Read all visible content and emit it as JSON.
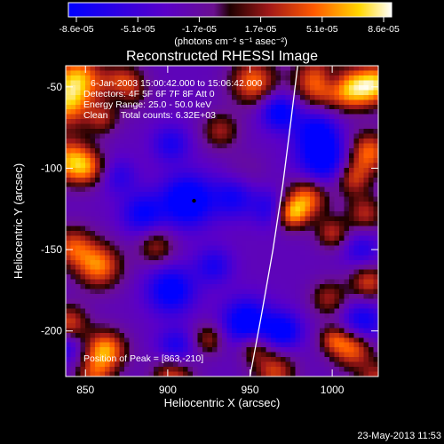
{
  "chart_data": {
    "type": "heatmap",
    "title": "Reconstructed RHESSI Image",
    "xlabel": "Heliocentric X (arcsec)",
    "ylabel": "Heliocentric Y (arcsec)",
    "xlim": [
      838,
      1028
    ],
    "ylim": [
      -228,
      -37
    ],
    "x_ticks": [
      850,
      900,
      950,
      1000
    ],
    "y_ticks": [
      -50,
      -100,
      -150,
      -200
    ],
    "colorbar": {
      "ticks": [
        "-8.6e-05",
        "-5.1e-05",
        "-1.7e-05",
        "1.7e-05",
        "5.1e-05",
        "8.6e-05"
      ],
      "units_label": "(photons cm⁻² s⁻¹ asec⁻²)",
      "range": [
        -8.6e-05,
        8.6e-05
      ]
    },
    "annotations": {
      "time_range": "6-Jan-2003 15:00:42.000 to 15:06:42.000",
      "detectors": "Detectors: 4F 5F 6F 7F 8F  Att 0",
      "energy_range": "Energy Range: 25.0 - 50.0 keV",
      "clean_counts": "Clean     Total counts: 6.32E+03",
      "peak_position": "Position of Peak = [863,-210]"
    },
    "limb_curve": [
      [
        950,
        -228
      ],
      [
        957,
        -190
      ],
      [
        964,
        -150
      ],
      [
        970,
        -110
      ],
      [
        975,
        -70
      ],
      [
        979,
        -37
      ]
    ],
    "peak_marker": [
      916,
      -120
    ],
    "blobs": [
      [
        845,
        -45,
        1.0,
        11
      ],
      [
        873,
        -50,
        0.9,
        9
      ],
      [
        838,
        -62,
        0.8,
        10
      ],
      [
        840,
        -95,
        0.9,
        10
      ],
      [
        852,
        -100,
        0.6,
        8
      ],
      [
        860,
        -70,
        0.5,
        7
      ],
      [
        952,
        -47,
        0.85,
        10
      ],
      [
        992,
        -47,
        0.9,
        11
      ],
      [
        1012,
        -52,
        0.85,
        9
      ],
      [
        1027,
        -48,
        1.0,
        9
      ],
      [
        1022,
        -90,
        0.85,
        9
      ],
      [
        1012,
        -106,
        0.7,
        8
      ],
      [
        985,
        -118,
        0.85,
        9
      ],
      [
        975,
        -128,
        0.9,
        7
      ],
      [
        1020,
        -128,
        0.6,
        8
      ],
      [
        1000,
        -140,
        0.6,
        7
      ],
      [
        932,
        -77,
        0.55,
        8
      ],
      [
        947,
        -102,
        0.5,
        7
      ],
      [
        893,
        -148,
        0.55,
        8
      ],
      [
        858,
        -160,
        0.9,
        10
      ],
      [
        842,
        -148,
        0.7,
        9
      ],
      [
        862,
        -212,
        1.0,
        9
      ],
      [
        840,
        -195,
        0.7,
        8
      ],
      [
        855,
        -228,
        0.6,
        8
      ],
      [
        903,
        -228,
        0.7,
        9
      ],
      [
        925,
        -205,
        0.55,
        7
      ],
      [
        965,
        -225,
        0.7,
        9
      ],
      [
        952,
        -210,
        0.55,
        7
      ],
      [
        998,
        -180,
        0.55,
        8
      ],
      [
        1012,
        -210,
        0.9,
        9
      ],
      [
        1027,
        -230,
        0.6,
        8
      ],
      [
        1022,
        -170,
        0.7,
        8
      ],
      [
        1000,
        -205,
        0.5,
        6
      ],
      [
        912,
        -120,
        -0.95,
        11
      ],
      [
        947,
        -102,
        -0.35,
        6
      ],
      [
        968,
        -65,
        -0.8,
        8
      ],
      [
        995,
        -95,
        -0.85,
        11
      ],
      [
        990,
        -77,
        -0.65,
        9
      ],
      [
        963,
        -125,
        -0.5,
        8
      ],
      [
        885,
        -128,
        -0.65,
        9
      ],
      [
        940,
        -118,
        -0.55,
        9
      ],
      [
        902,
        -175,
        -0.8,
        10
      ],
      [
        948,
        -195,
        -0.9,
        10
      ],
      [
        970,
        -200,
        -0.75,
        8
      ],
      [
        1018,
        -195,
        -0.7,
        9
      ],
      [
        905,
        -210,
        -0.55,
        8
      ],
      [
        838,
        -210,
        -0.45,
        7
      ],
      [
        870,
        -105,
        -0.4,
        8
      ],
      [
        1018,
        -150,
        -0.45,
        8
      ],
      [
        928,
        -160,
        -0.5,
        8
      ],
      [
        870,
        -55,
        -0.35,
        6
      ],
      [
        1000,
        -45,
        -0.4,
        6
      ],
      [
        902,
        -85,
        -0.5,
        8
      ]
    ]
  },
  "footer": {
    "date": "23-May-2013 11:53"
  }
}
